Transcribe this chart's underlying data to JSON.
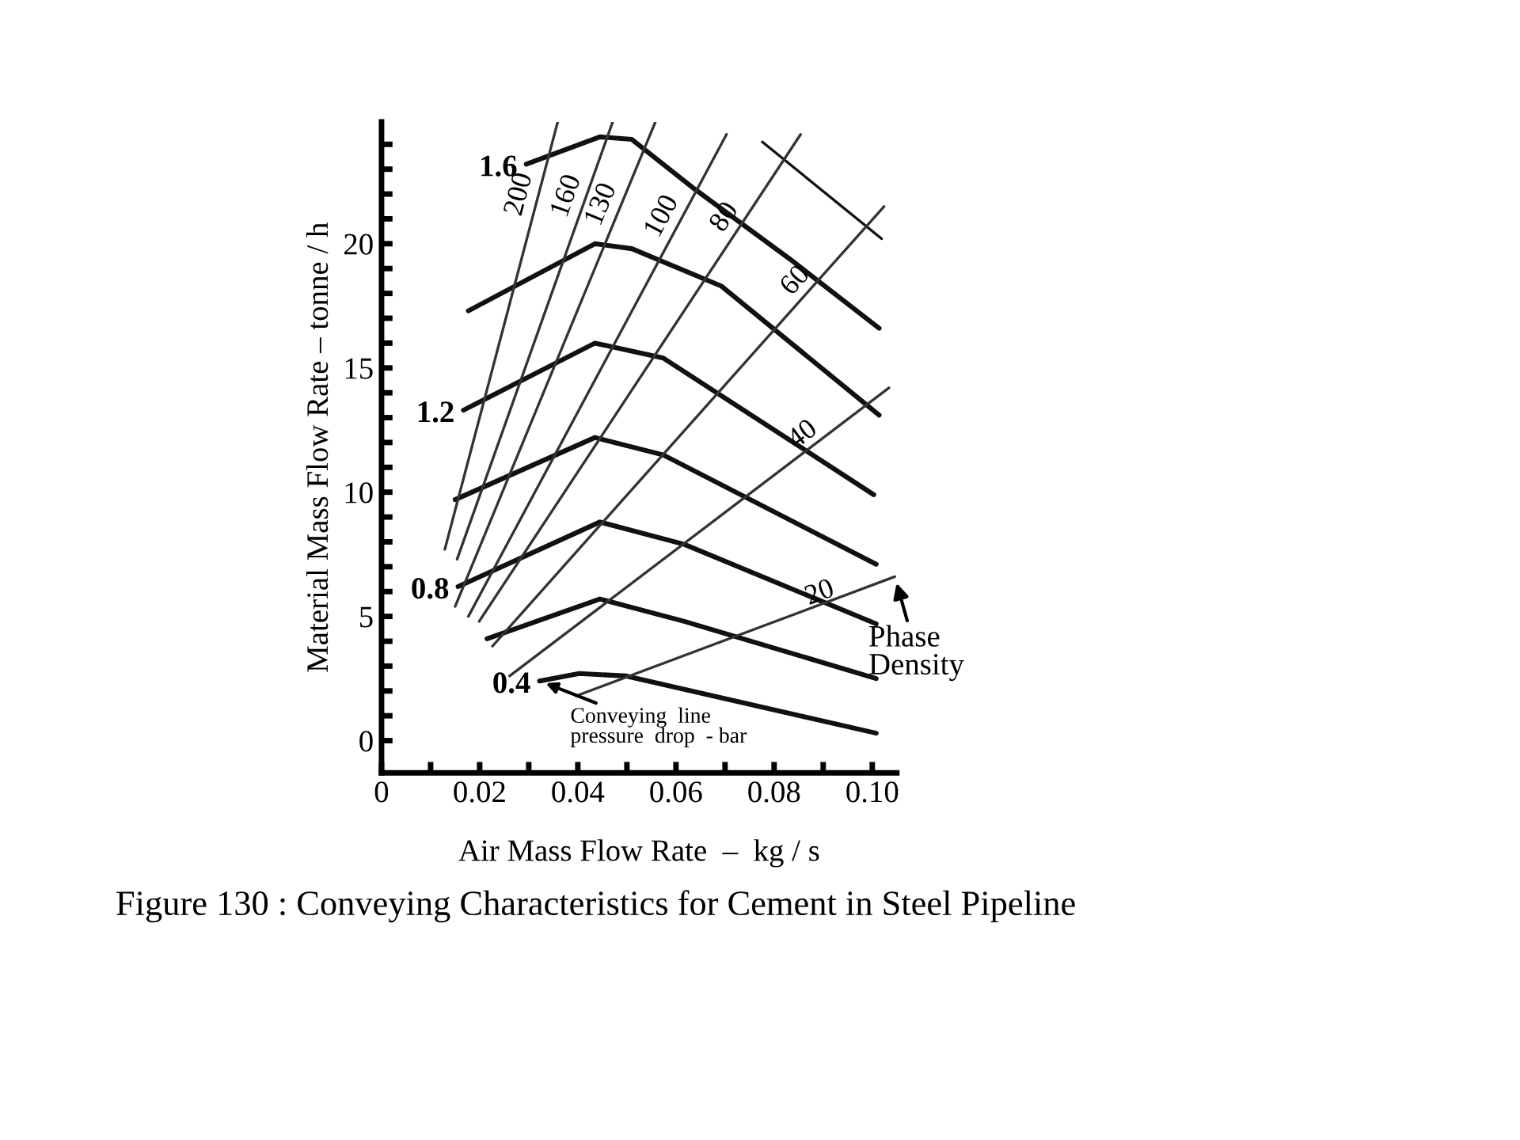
{
  "chart_data": {
    "type": "line",
    "xlabel": "Air Mass Flow Rate  –  kg / s",
    "ylabel": "Material Mass Flow Rate – tonne / h",
    "xlim": [
      0,
      0.105
    ],
    "ylim": [
      -1.3,
      24.9
    ],
    "xticks": [
      0,
      {
        "value": 0.01,
        "label": null
      },
      0.02,
      {
        "value": 0.03,
        "label": null
      },
      0.04,
      {
        "value": 0.05,
        "label": null
      },
      0.06,
      {
        "value": 0.07,
        "label": null
      },
      0.08,
      {
        "value": 0.09,
        "label": null
      },
      {
        "value": 0.1,
        "label": "0.10"
      }
    ],
    "yticks": [
      0,
      {
        "value": 1,
        "label": null
      },
      {
        "value": 2,
        "label": null
      },
      {
        "value": 3,
        "label": null
      },
      {
        "value": 4,
        "label": null
      },
      5,
      {
        "value": 6,
        "label": null
      },
      {
        "value": 7,
        "label": null
      },
      {
        "value": 8,
        "label": null
      },
      {
        "value": 9,
        "label": null
      },
      10,
      {
        "value": 11,
        "label": null
      },
      {
        "value": 12,
        "label": null
      },
      {
        "value": 13,
        "label": null
      },
      {
        "value": 14,
        "label": null
      },
      15,
      {
        "value": 16,
        "label": null
      },
      {
        "value": 17,
        "label": null
      },
      {
        "value": 18,
        "label": null
      },
      {
        "value": 19,
        "label": null
      },
      20,
      {
        "value": 21,
        "label": null
      },
      {
        "value": 22,
        "label": null
      },
      {
        "value": 23,
        "label": null
      },
      {
        "value": 24,
        "label": null
      }
    ],
    "grid": false,
    "series": [
      {
        "color": "#111111",
        "x": [
          0.0776,
          0.1019
        ],
        "values": [
          24.1,
          20.2
        ]
      },
      {
        "name": "1.6",
        "color": "#111111",
        "x": [
          0.0295,
          0.0445,
          0.051,
          0.0638,
          0.0831,
          0.1014
        ],
        "values": [
          23.2,
          24.3,
          24.2,
          22.2,
          19.4,
          16.6
        ]
      },
      {
        "color": "#111111",
        "x": [
          0.0177,
          0.0435,
          0.051,
          0.0692,
          0.1014
        ],
        "values": [
          17.3,
          20.0,
          19.8,
          18.3,
          13.1
        ]
      },
      {
        "name": "1.2",
        "color": "#111111",
        "x": [
          0.0167,
          0.0435,
          0.0574,
          0.1003
        ],
        "values": [
          13.3,
          16.0,
          15.4,
          9.9
        ]
      },
      {
        "color": "#111111",
        "x": [
          0.015,
          0.0435,
          0.0574,
          0.1008
        ],
        "values": [
          9.7,
          12.2,
          11.5,
          7.1
        ]
      },
      {
        "name": "0.8",
        "color": "#111111",
        "x": [
          0.0156,
          0.0445,
          0.0617,
          0.1008
        ],
        "values": [
          6.2,
          8.8,
          7.9,
          4.7
        ]
      },
      {
        "color": "#111111",
        "x": [
          0.0215,
          0.0445,
          0.0617,
          0.1008
        ],
        "values": [
          4.1,
          5.7,
          4.8,
          2.5
        ]
      },
      {
        "name": "0.4",
        "color": "#111111",
        "x": [
          0.0322,
          0.0403,
          0.0499,
          0.1008
        ],
        "values": [
          2.4,
          2.7,
          2.6,
          0.3
        ]
      },
      {
        "name": "200",
        "color": "#333333",
        "x": [
          0.0129,
          0.0359
        ],
        "values": [
          7.7,
          24.9
        ]
      },
      {
        "name": "160",
        "color": "#333333",
        "x": [
          0.0154,
          0.0471
        ],
        "values": [
          7.3,
          24.9
        ]
      },
      {
        "name": "130",
        "color": "#333333",
        "x": [
          0.015,
          0.0558
        ],
        "values": [
          5.4,
          24.9
        ]
      },
      {
        "name": "100",
        "color": "#333333",
        "x": [
          0.0177,
          0.0703
        ],
        "values": [
          5.0,
          24.4
        ]
      },
      {
        "name": "80",
        "color": "#333333",
        "x": [
          0.0199,
          0.0854
        ],
        "values": [
          4.8,
          24.4
        ]
      },
      {
        "name": "60",
        "color": "#333333",
        "x": [
          0.0226,
          0.1024
        ],
        "values": [
          3.8,
          21.5
        ]
      },
      {
        "name": "40",
        "color": "#333333",
        "x": [
          0.0261,
          0.1034
        ],
        "values": [
          2.6,
          14.2
        ]
      },
      {
        "name": "20",
        "color": "#333333",
        "x": [
          0.0397,
          0.1046
        ],
        "values": [
          1.8,
          6.6
        ]
      }
    ],
    "annotations": [
      {
        "text": "Conveying  line\npressure  drop  - bar",
        "x": 0.0322,
        "y": 2.4
      },
      {
        "text": "Phase\nDensity",
        "x": 0.1046,
        "y": 6.6
      },
      "Figure 130 : Conveying Characteristics for Cement in Steel Pipeline"
    ]
  }
}
